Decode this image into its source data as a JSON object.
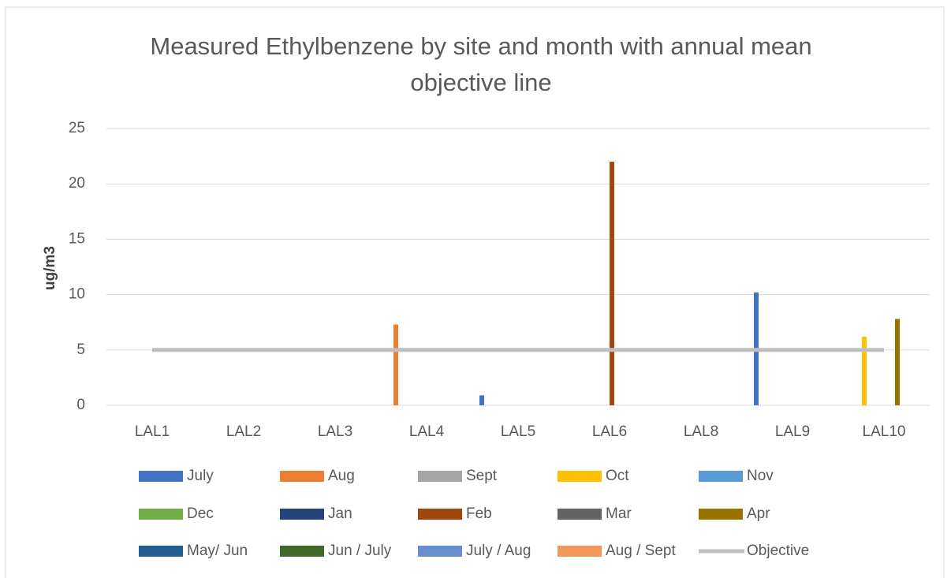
{
  "chart_data": {
    "type": "bar",
    "title": "Measured Ethylbenzene by site and month with annual mean objective line",
    "y_label": "ug/m3",
    "categories": [
      "LAL1",
      "LAL2",
      "LAL3",
      "LAL4",
      "LAL5",
      "LAL6",
      "LAL8",
      "LAL9",
      "LAL10"
    ],
    "ylim": [
      0,
      25
    ],
    "yticks": [
      0,
      5,
      10,
      15,
      20,
      25
    ],
    "grid": true,
    "series": [
      {
        "name": "July",
        "color": "#4472c4",
        "values": [
          null,
          null,
          null,
          null,
          0.9,
          null,
          null,
          10.2,
          null
        ]
      },
      {
        "name": "Aug",
        "color": "#ed7d31",
        "values": [
          null,
          null,
          null,
          7.3,
          null,
          null,
          null,
          null,
          null
        ]
      },
      {
        "name": "Sept",
        "color": "#a5a5a5",
        "values": [
          null,
          null,
          null,
          null,
          null,
          null,
          null,
          null,
          null
        ]
      },
      {
        "name": "Oct",
        "color": "#ffc000",
        "values": [
          null,
          null,
          null,
          null,
          null,
          null,
          null,
          null,
          6.2
        ]
      },
      {
        "name": "Nov",
        "color": "#5b9bd5",
        "values": [
          null,
          null,
          null,
          null,
          null,
          null,
          null,
          null,
          null
        ]
      },
      {
        "name": "Dec",
        "color": "#70ad47",
        "values": [
          null,
          null,
          null,
          null,
          null,
          null,
          null,
          null,
          null
        ]
      },
      {
        "name": "Jan",
        "color": "#264478",
        "values": [
          null,
          null,
          null,
          null,
          null,
          null,
          null,
          null,
          null
        ]
      },
      {
        "name": "Feb",
        "color": "#9e480e",
        "values": [
          null,
          null,
          null,
          null,
          null,
          22,
          null,
          null,
          null
        ]
      },
      {
        "name": "Mar",
        "color": "#636363",
        "values": [
          null,
          null,
          null,
          null,
          null,
          null,
          null,
          null,
          null
        ]
      },
      {
        "name": "Apr",
        "color": "#997300",
        "values": [
          null,
          null,
          null,
          null,
          null,
          null,
          null,
          null,
          7.8
        ]
      },
      {
        "name": "May/ Jun",
        "color": "#255e91",
        "values": [
          null,
          null,
          null,
          null,
          null,
          null,
          null,
          null,
          null
        ]
      },
      {
        "name": "Jun / July",
        "color": "#43682b",
        "values": [
          null,
          null,
          null,
          null,
          null,
          null,
          null,
          null,
          null
        ]
      },
      {
        "name": "July / Aug",
        "color": "#698ed0",
        "values": [
          null,
          null,
          null,
          null,
          null,
          null,
          null,
          null,
          null
        ]
      },
      {
        "name": "Aug / Sept",
        "color": "#f1975a",
        "values": [
          null,
          null,
          null,
          null,
          null,
          null,
          null,
          null,
          null
        ]
      },
      {
        "name": "Objective",
        "color": "#bfbfbf",
        "type": "line",
        "values": [
          5,
          5,
          5,
          5,
          5,
          5,
          5,
          5,
          5
        ]
      }
    ]
  }
}
